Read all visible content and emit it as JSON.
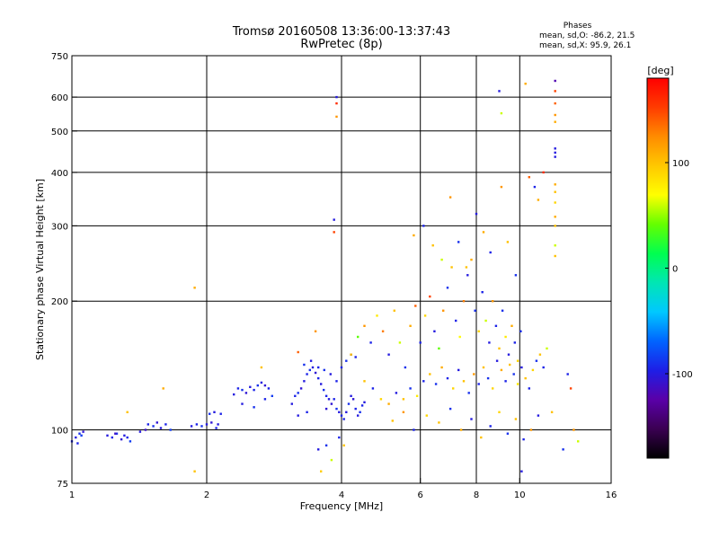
{
  "header": {
    "title_line1": "Tromsø 20160508 13:36:00-13:37:43",
    "title_line2": "RwPretec (8p)"
  },
  "phases": {
    "title": "Phases",
    "o_stats": "mean, sd,O: -86.2, 21.5",
    "x_stats": "mean, sd,X:  95.9, 26.1"
  },
  "colorbar": {
    "unit": "[deg]",
    "ticks": [
      {
        "label": "100",
        "value": 100
      },
      {
        "label": "0",
        "value": 0
      },
      {
        "label": "-100",
        "value": -100
      }
    ],
    "range": [
      -180,
      180
    ],
    "colors": [
      "#000000",
      "#3a0052",
      "#5a00a8",
      "#1e1ee6",
      "#0064ff",
      "#00c8ff",
      "#00e6b4",
      "#00ff50",
      "#64ff00",
      "#ffff00",
      "#ffc800",
      "#ff8c00",
      "#ff3c00",
      "#ff0000"
    ]
  },
  "chart_data": {
    "type": "scatter",
    "xlabel": "Frequency [MHz]",
    "ylabel": "Stationary phase Virtual Height [km]",
    "x_scale": "log",
    "y_scale": "log",
    "xlim": [
      1,
      16
    ],
    "ylim": [
      75,
      750
    ],
    "xticks": [
      {
        "value": 1,
        "label": "1"
      },
      {
        "value": 2,
        "label": "2"
      },
      {
        "value": 4,
        "label": "4"
      },
      {
        "value": 6,
        "label": "6"
      },
      {
        "value": 8,
        "label": "8"
      },
      {
        "value": 10,
        "label": "10"
      },
      {
        "value": 16,
        "label": "16"
      }
    ],
    "yticks": [
      {
        "value": 75,
        "label": "75"
      },
      {
        "value": 100,
        "label": "100"
      },
      {
        "value": 200,
        "label": "200"
      },
      {
        "value": 300,
        "label": "300"
      },
      {
        "value": 400,
        "label": "400"
      },
      {
        "value": 500,
        "label": "500"
      },
      {
        "value": 600,
        "label": "600"
      },
      {
        "value": 750,
        "label": "750"
      }
    ],
    "x_gridlines": [
      2,
      4,
      6,
      8,
      10
    ],
    "y_gridlines": [
      100,
      200,
      300,
      400,
      500,
      600
    ],
    "points": [
      [
        1.0,
        94,
        -95
      ],
      [
        1.02,
        96,
        -100
      ],
      [
        1.04,
        98,
        -90
      ],
      [
        1.06,
        99,
        -105
      ],
      [
        1.03,
        93,
        -95
      ],
      [
        1.05,
        97,
        -85
      ],
      [
        1.2,
        97,
        -100
      ],
      [
        1.23,
        96,
        -95
      ],
      [
        1.26,
        98,
        -90
      ],
      [
        1.29,
        95,
        -105
      ],
      [
        1.31,
        97,
        -100
      ],
      [
        1.33,
        96,
        -95
      ],
      [
        1.35,
        94,
        -85
      ],
      [
        1.25,
        98,
        -110
      ],
      [
        1.42,
        99,
        -100
      ],
      [
        1.48,
        103,
        -95
      ],
      [
        1.52,
        102,
        -90
      ],
      [
        1.55,
        104,
        -105
      ],
      [
        1.58,
        101,
        -100
      ],
      [
        1.62,
        103,
        -95
      ],
      [
        1.66,
        100,
        -85
      ],
      [
        1.46,
        100,
        -110
      ],
      [
        1.85,
        102,
        -100
      ],
      [
        1.9,
        103,
        -95
      ],
      [
        1.95,
        102,
        -90
      ],
      [
        2.0,
        103,
        -100
      ],
      [
        2.05,
        104,
        -105
      ],
      [
        2.1,
        101,
        -95
      ],
      [
        2.12,
        103,
        -100
      ],
      [
        2.03,
        109,
        -90
      ],
      [
        2.08,
        110,
        -100
      ],
      [
        2.15,
        109,
        -95
      ],
      [
        2.3,
        121,
        -100
      ],
      [
        2.35,
        125,
        -95
      ],
      [
        2.4,
        124,
        -90
      ],
      [
        2.45,
        122,
        -105
      ],
      [
        2.5,
        126,
        -100
      ],
      [
        2.55,
        124,
        -95
      ],
      [
        2.6,
        127,
        -90
      ],
      [
        2.65,
        129,
        -100
      ],
      [
        2.7,
        127,
        -105
      ],
      [
        2.75,
        125,
        -95
      ],
      [
        2.4,
        115,
        -100
      ],
      [
        2.55,
        113,
        -90
      ],
      [
        2.7,
        118,
        -95
      ],
      [
        2.8,
        120,
        -85
      ],
      [
        3.1,
        115,
        -100
      ],
      [
        3.15,
        120,
        -95
      ],
      [
        3.2,
        122,
        -90
      ],
      [
        3.25,
        125,
        -105
      ],
      [
        3.3,
        130,
        -100
      ],
      [
        3.35,
        135,
        -95
      ],
      [
        3.4,
        138,
        -90
      ],
      [
        3.45,
        140,
        -100
      ],
      [
        3.5,
        136,
        -105
      ],
      [
        3.55,
        132,
        -95
      ],
      [
        3.6,
        128,
        -100
      ],
      [
        3.65,
        124,
        -90
      ],
      [
        3.7,
        120,
        -95
      ],
      [
        3.75,
        118,
        -100
      ],
      [
        3.8,
        115,
        -105
      ],
      [
        3.85,
        118,
        -95
      ],
      [
        3.9,
        112,
        -90
      ],
      [
        3.95,
        110,
        -100
      ],
      [
        4.0,
        108,
        -95
      ],
      [
        3.3,
        142,
        -90
      ],
      [
        3.42,
        145,
        -100
      ],
      [
        3.55,
        140,
        -95
      ],
      [
        3.66,
        138,
        -90
      ],
      [
        3.78,
        135,
        -100
      ],
      [
        3.9,
        130,
        -95
      ],
      [
        3.2,
        108,
        -100
      ],
      [
        3.35,
        110,
        -95
      ],
      [
        3.7,
        112,
        -105
      ],
      [
        4.05,
        106,
        -95
      ],
      [
        4.1,
        110,
        -100
      ],
      [
        4.15,
        115,
        -90
      ],
      [
        4.2,
        120,
        -100
      ],
      [
        4.25,
        118,
        -105
      ],
      [
        4.3,
        112,
        -95
      ],
      [
        4.35,
        108,
        -100
      ],
      [
        4.4,
        110,
        -90
      ],
      [
        4.45,
        114,
        -95
      ],
      [
        4.5,
        116,
        -100
      ],
      [
        4.0,
        140,
        -95
      ],
      [
        4.1,
        145,
        -90
      ],
      [
        4.2,
        150,
        -100
      ],
      [
        4.3,
        148,
        -95
      ],
      [
        3.55,
        90,
        -100
      ],
      [
        3.6,
        80,
        95
      ],
      [
        3.7,
        92,
        -90
      ],
      [
        3.8,
        85,
        60
      ],
      [
        3.95,
        96,
        -95
      ],
      [
        4.05,
        92,
        100
      ],
      [
        4.2,
        150,
        100
      ],
      [
        4.35,
        165,
        40
      ],
      [
        4.5,
        175,
        120
      ],
      [
        4.65,
        160,
        -95
      ],
      [
        4.8,
        185,
        80
      ],
      [
        4.95,
        170,
        130
      ],
      [
        5.1,
        150,
        -100
      ],
      [
        5.25,
        190,
        100
      ],
      [
        5.4,
        160,
        60
      ],
      [
        5.55,
        140,
        -90
      ],
      [
        5.7,
        175,
        110
      ],
      [
        5.85,
        195,
        140
      ],
      [
        6.0,
        160,
        -95
      ],
      [
        6.15,
        185,
        90
      ],
      [
        6.3,
        205,
        150
      ],
      [
        6.45,
        170,
        -100
      ],
      [
        6.6,
        155,
        40
      ],
      [
        6.75,
        190,
        120
      ],
      [
        6.9,
        215,
        -90
      ],
      [
        7.05,
        240,
        100
      ],
      [
        7.2,
        180,
        -95
      ],
      [
        7.35,
        165,
        70
      ],
      [
        7.5,
        200,
        130
      ],
      [
        7.65,
        230,
        -100
      ],
      [
        7.8,
        250,
        110
      ],
      [
        7.95,
        190,
        -90
      ],
      [
        8.1,
        170,
        90
      ],
      [
        8.25,
        210,
        -95
      ],
      [
        8.4,
        180,
        60
      ],
      [
        8.55,
        160,
        -100
      ],
      [
        8.7,
        200,
        120
      ],
      [
        8.85,
        175,
        -95
      ],
      [
        9.0,
        155,
        100
      ],
      [
        9.15,
        190,
        -90
      ],
      [
        9.3,
        165,
        80
      ],
      [
        9.45,
        150,
        -100
      ],
      [
        9.6,
        175,
        110
      ],
      [
        9.75,
        160,
        -95
      ],
      [
        9.9,
        145,
        90
      ],
      [
        10.05,
        170,
        -90
      ],
      [
        4.5,
        130,
        100
      ],
      [
        4.7,
        125,
        -95
      ],
      [
        4.9,
        118,
        90
      ],
      [
        5.1,
        115,
        110
      ],
      [
        5.3,
        122,
        -100
      ],
      [
        5.5,
        118,
        100
      ],
      [
        5.7,
        125,
        -90
      ],
      [
        5.9,
        120,
        80
      ],
      [
        6.1,
        130,
        -95
      ],
      [
        6.3,
        135,
        100
      ],
      [
        6.5,
        128,
        -90
      ],
      [
        6.7,
        140,
        110
      ],
      [
        6.9,
        132,
        -95
      ],
      [
        7.1,
        125,
        90
      ],
      [
        7.3,
        138,
        -100
      ],
      [
        7.5,
        130,
        100
      ],
      [
        7.7,
        122,
        -90
      ],
      [
        7.9,
        135,
        120
      ],
      [
        8.1,
        128,
        -95
      ],
      [
        8.3,
        140,
        100
      ],
      [
        8.5,
        132,
        -90
      ],
      [
        8.7,
        125,
        90
      ],
      [
        8.9,
        145,
        -100
      ],
      [
        9.1,
        138,
        110
      ],
      [
        9.3,
        130,
        -95
      ],
      [
        9.5,
        142,
        100
      ],
      [
        9.7,
        135,
        -90
      ],
      [
        9.9,
        128,
        80
      ],
      [
        10.1,
        140,
        -100
      ],
      [
        10.3,
        132,
        100
      ],
      [
        10.5,
        125,
        -95
      ],
      [
        10.7,
        138,
        90
      ],
      [
        10.9,
        145,
        -90
      ],
      [
        11.1,
        150,
        100
      ],
      [
        11.3,
        140,
        -95
      ],
      [
        11.5,
        155,
        60
      ],
      [
        5.2,
        105,
        100
      ],
      [
        5.5,
        110,
        120
      ],
      [
        5.8,
        100,
        -95
      ],
      [
        6.2,
        108,
        90
      ],
      [
        6.6,
        104,
        100
      ],
      [
        7.0,
        112,
        -90
      ],
      [
        7.4,
        100,
        110
      ],
      [
        7.8,
        106,
        -100
      ],
      [
        8.2,
        96,
        100
      ],
      [
        8.6,
        102,
        -95
      ],
      [
        9.0,
        110,
        90
      ],
      [
        9.4,
        98,
        -90
      ],
      [
        9.8,
        106,
        100
      ],
      [
        10.2,
        95,
        -95
      ],
      [
        10.6,
        100,
        120
      ],
      [
        11.0,
        108,
        -100
      ],
      [
        5.8,
        285,
        110
      ],
      [
        6.1,
        300,
        -95
      ],
      [
        6.4,
        270,
        100
      ],
      [
        6.7,
        250,
        60
      ],
      [
        7.0,
        350,
        120
      ],
      [
        7.3,
        275,
        -90
      ],
      [
        7.6,
        240,
        100
      ],
      [
        8.0,
        320,
        -100
      ],
      [
        8.3,
        290,
        110
      ],
      [
        8.6,
        260,
        -95
      ],
      [
        9.1,
        370,
        120
      ],
      [
        9.4,
        275,
        100
      ],
      [
        9.8,
        230,
        -90
      ],
      [
        3.85,
        310,
        -100
      ],
      [
        3.85,
        290,
        150
      ],
      [
        3.9,
        600,
        -100
      ],
      [
        3.9,
        580,
        160
      ],
      [
        3.9,
        540,
        120
      ],
      [
        9.0,
        620,
        -100
      ],
      [
        9.1,
        550,
        60
      ],
      [
        10.5,
        390,
        140
      ],
      [
        10.8,
        370,
        -95
      ],
      [
        11.0,
        345,
        110
      ],
      [
        11.3,
        400,
        160
      ],
      [
        12.0,
        655,
        -120
      ],
      [
        12.0,
        620,
        150
      ],
      [
        12.0,
        580,
        140
      ],
      [
        12.0,
        545,
        120
      ],
      [
        12.0,
        525,
        110
      ],
      [
        12.0,
        455,
        -100
      ],
      [
        12.0,
        445,
        -100
      ],
      [
        12.0,
        435,
        -100
      ],
      [
        12.0,
        375,
        110
      ],
      [
        12.0,
        360,
        100
      ],
      [
        12.0,
        340,
        90
      ],
      [
        12.0,
        315,
        110
      ],
      [
        12.0,
        300,
        100
      ],
      [
        12.0,
        270,
        60
      ],
      [
        12.0,
        255,
        100
      ],
      [
        1.88,
        215,
        110
      ],
      [
        1.88,
        80,
        100
      ],
      [
        1.6,
        125,
        110
      ],
      [
        1.33,
        110,
        100
      ],
      [
        2.65,
        140,
        100
      ],
      [
        3.2,
        152,
        140
      ],
      [
        3.5,
        170,
        120
      ],
      [
        10.3,
        645,
        110
      ],
      [
        13.0,
        125,
        150
      ],
      [
        13.2,
        100,
        120
      ],
      [
        13.5,
        94,
        60
      ],
      [
        10.1,
        80,
        -100
      ],
      [
        12.5,
        90,
        -90
      ],
      [
        11.8,
        110,
        100
      ],
      [
        12.8,
        135,
        -95
      ]
    ]
  }
}
